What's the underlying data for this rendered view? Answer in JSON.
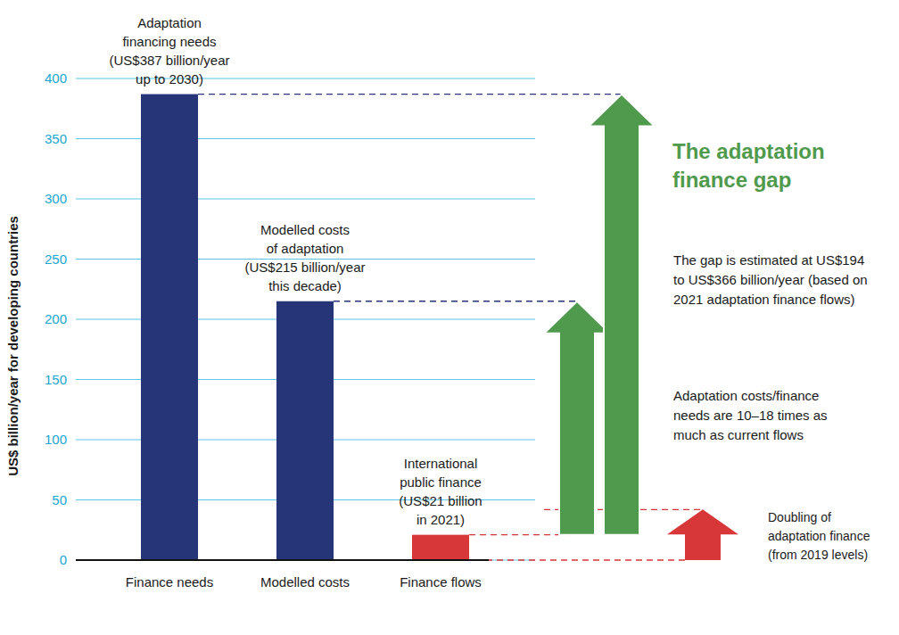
{
  "chart_data": {
    "type": "bar",
    "categories": [
      "Finance needs",
      "Modelled costs",
      "Finance flows"
    ],
    "values": [
      387,
      215,
      21
    ],
    "colors": [
      "#263478",
      "#263478",
      "#d8373a"
    ],
    "ylim": [
      0,
      400
    ],
    "yticks": [
      0,
      50,
      100,
      150,
      200,
      250,
      300,
      350,
      400
    ],
    "grid": true,
    "y_label": "US$ billion/year for developing countries",
    "bar_labels": [
      [
        "Adaptation",
        "financing needs",
        "(US$387 billion/year",
        "up to 2030)"
      ],
      [
        "Modelled costs",
        "of adaptation",
        "(US$215 billion/year",
        "this decade)"
      ],
      [
        "International",
        "public finance",
        "(US$21 billion",
        "in 2021)"
      ]
    ],
    "gap_arrows": [
      {
        "from": 21,
        "to": 215,
        "color": "#4f9a4c"
      },
      {
        "from": 21,
        "to": 387,
        "color": "#4f9a4c"
      }
    ],
    "doubling_arrow": {
      "from": 0,
      "to": 42,
      "color": "#d8373a"
    },
    "gap_title": [
      "The adaptation",
      "finance gap"
    ],
    "gap_text": [
      "The gap is estimated at US$194",
      "to US$366 billion/year (based on",
      "2021 adaptation finance flows)"
    ],
    "ratio_text": [
      "Adaptation costs/finance",
      "needs are 10–18 times as",
      "much as current flows"
    ],
    "doubling_text": [
      "Doubling of",
      "adaptation finance",
      "(from 2019 levels)"
    ]
  }
}
